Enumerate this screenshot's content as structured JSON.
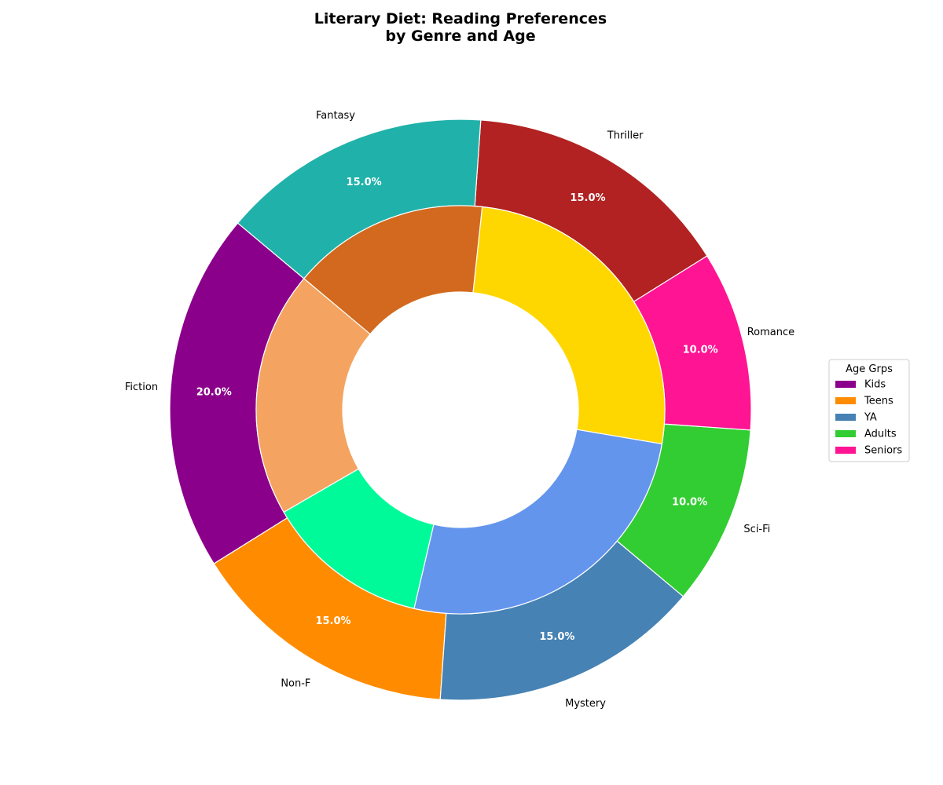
{
  "chart_data": {
    "type": "donut",
    "title_lines": [
      "Literary Diet: Reading Preferences",
      "by Genre and Age"
    ],
    "outer_ring": {
      "categories": [
        "Fiction",
        "Non-F",
        "Mystery",
        "Sci-Fi",
        "Romance",
        "Thriller",
        "Fantasy"
      ],
      "values": [
        20,
        15,
        15,
        10,
        10,
        15,
        15
      ],
      "percent_labels": [
        "20.0%",
        "15.0%",
        "15.0%",
        "10.0%",
        "10.0%",
        "15.0%",
        "15.0%"
      ],
      "colors": [
        "#8B008B",
        "#FF8C00",
        "#4682B4",
        "#32CD32",
        "#FF1493",
        "#B22222",
        "#20B2AA"
      ],
      "start_angle_deg": 140,
      "direction": "counterclockwise"
    },
    "inner_ring": {
      "values": [
        15,
        10,
        20,
        20,
        12
      ],
      "colors": [
        "#F4A460",
        "#00FA9A",
        "#6495ED",
        "#FFD700",
        "#D2691E"
      ],
      "start_angle_deg": 140,
      "direction": "counterclockwise"
    },
    "legend": {
      "title": "Age Grps",
      "placement": "right",
      "entries": [
        {
          "label": "Kids",
          "color": "#8B008B"
        },
        {
          "label": "Teens",
          "color": "#FF8C00"
        },
        {
          "label": "YA",
          "color": "#4682B4"
        },
        {
          "label": "Adults",
          "color": "#32CD32"
        },
        {
          "label": "Seniors",
          "color": "#FF1493"
        }
      ]
    }
  }
}
